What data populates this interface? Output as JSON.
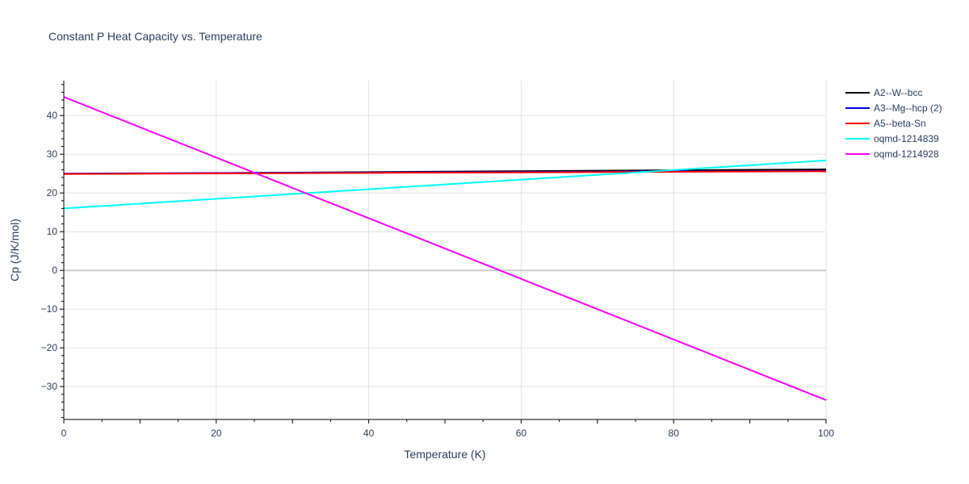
{
  "chart_data": {
    "type": "line",
    "title": "Constant P Heat Capacity vs. Temperature",
    "xlabel": "Temperature (K)",
    "ylabel": "Cp (J/K/mol)",
    "xlim": [
      0,
      100
    ],
    "ylim": [
      -38.5,
      49
    ],
    "x_ticks": [
      0,
      20,
      40,
      60,
      80,
      100
    ],
    "y_ticks": [
      -30,
      -20,
      -10,
      0,
      10,
      20,
      30,
      40
    ],
    "y_tick_labels": [
      "−30",
      "−20",
      "−10",
      "0",
      "10",
      "20",
      "30",
      "40"
    ],
    "grid": true,
    "legend_position": "top-right",
    "series": [
      {
        "name": "A2--W--bcc",
        "color": "#000000",
        "x": [
          0,
          100
        ],
        "y": [
          24.9,
          26.1
        ]
      },
      {
        "name": "A3--Mg--hcp (2)",
        "color": "#0000ff",
        "x": [
          0,
          100
        ],
        "y": [
          25.0,
          25.7
        ]
      },
      {
        "name": "A5--beta-Sn",
        "color": "#ff0000",
        "x": [
          0,
          100
        ],
        "y": [
          24.9,
          25.6
        ]
      },
      {
        "name": "oqmd-1214839",
        "color": "#00ffff",
        "x": [
          0,
          100
        ],
        "y": [
          16.0,
          28.4
        ]
      },
      {
        "name": "oqmd-1214928",
        "color": "#ff00ff",
        "x": [
          0,
          100
        ],
        "y": [
          44.8,
          -33.5
        ]
      }
    ]
  }
}
